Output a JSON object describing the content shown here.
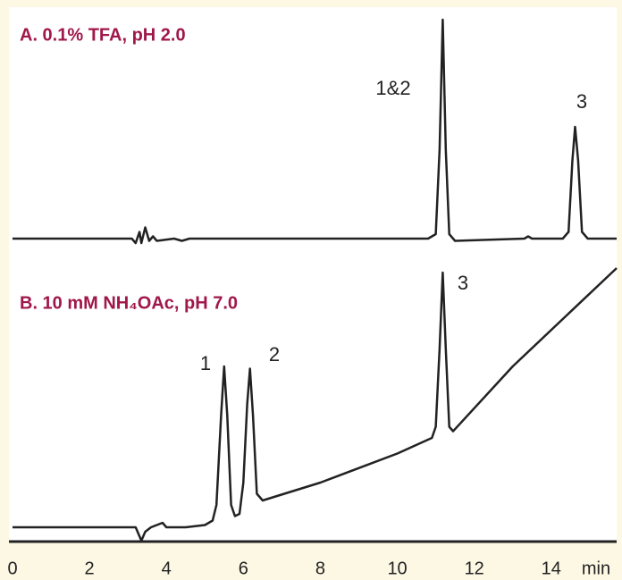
{
  "chart_data": {
    "type": "line",
    "xlabel": "min",
    "xlim": [
      0,
      15.7
    ],
    "xticks": [
      0,
      2,
      4,
      6,
      8,
      10,
      12,
      14
    ],
    "series": [
      {
        "name": "A. 0.1% TFA, pH 2.0",
        "color": "#222222",
        "peak_labels": [
          "1&2",
          "3"
        ],
        "x": [
          0,
          3.1,
          3.2,
          3.3,
          3.35,
          3.45,
          3.55,
          3.65,
          3.75,
          4.2,
          4.4,
          4.6,
          10.8,
          11.0,
          11.1,
          11.18,
          11.26,
          11.35,
          11.5,
          13.3,
          13.4,
          13.5,
          14.3,
          14.45,
          14.55,
          14.62,
          14.7,
          14.8,
          14.95,
          15.7
        ],
        "values": [
          0,
          0,
          -2,
          3,
          -2,
          5,
          -1,
          1,
          -1,
          0,
          -1,
          0,
          0,
          2,
          40,
          98,
          40,
          2,
          -1,
          0,
          1,
          0,
          0,
          3,
          35,
          50,
          35,
          3,
          0,
          0
        ]
      },
      {
        "name": "B. 10 mM NH₄OAc, pH 7.0",
        "color": "#222222",
        "peak_labels": [
          "1",
          "2",
          "3"
        ],
        "x": [
          0,
          3.2,
          3.35,
          3.45,
          3.6,
          3.9,
          4.0,
          4.5,
          5.0,
          5.2,
          5.3,
          5.42,
          5.5,
          5.58,
          5.68,
          5.78,
          5.9,
          6.0,
          6.1,
          6.17,
          6.25,
          6.35,
          6.5,
          8,
          10,
          10.9,
          11.0,
          11.1,
          11.18,
          11.26,
          11.35,
          11.45,
          13,
          15.7
        ],
        "values": [
          0,
          0,
          -6,
          -2,
          0,
          2,
          0,
          0,
          1,
          3,
          10,
          50,
          72,
          50,
          10,
          5,
          6,
          20,
          55,
          71,
          50,
          15,
          12,
          20,
          33,
          40,
          45,
          80,
          114,
          80,
          45,
          43,
          72,
          116
        ]
      }
    ]
  }
}
